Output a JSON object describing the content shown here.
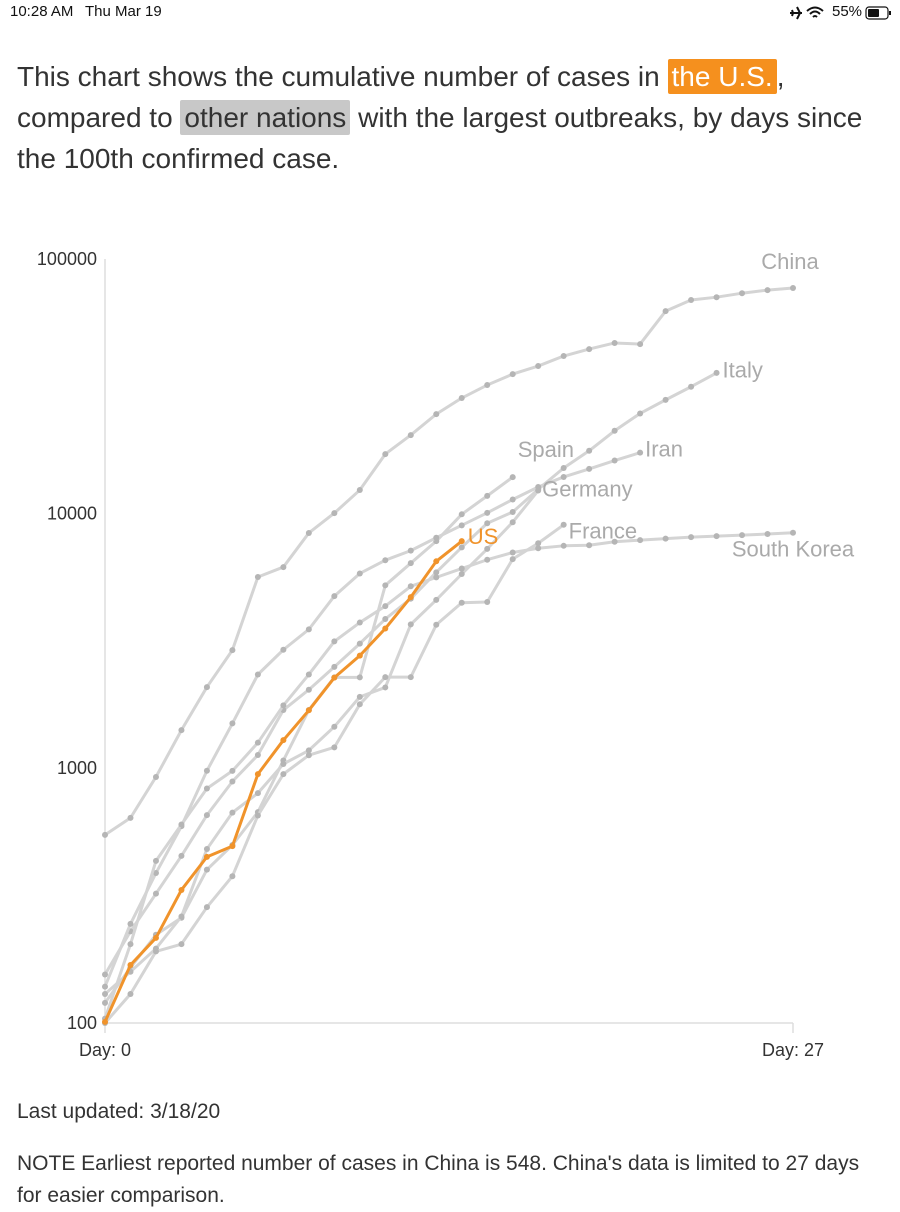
{
  "status_bar": {
    "time": "10:28 AM",
    "date": "Thu Mar 19",
    "battery": "55%"
  },
  "intro": [
    "This chart shows the cumulative number of cases in ",
    "the U.S.",
    ", compared to ",
    "other nations",
    " with the largest outbreaks, by days since the 100th confirmed case."
  ],
  "chart_data": {
    "type": "line",
    "log_scale": true,
    "x": [
      0,
      1,
      2,
      3,
      4,
      5,
      6,
      7,
      8,
      9,
      10,
      11,
      12,
      13,
      14,
      15,
      16,
      17,
      18,
      19,
      20,
      21,
      22,
      23,
      24,
      25,
      26,
      27
    ],
    "xlim": [
      0,
      27
    ],
    "xticks": [
      {
        "value": 0,
        "label": "Day: 0"
      },
      {
        "value": 27,
        "label": "Day: 27"
      }
    ],
    "ylim": [
      100,
      100000
    ],
    "yticks": [
      100,
      1000,
      10000,
      100000
    ],
    "series": [
      {
        "name": "China",
        "color": "#d4d4d4",
        "values": [
          548,
          639,
          925,
          1413,
          2085,
          2912,
          5640,
          6170,
          8400,
          10050,
          12380,
          17140,
          20350,
          24600,
          28450,
          31990,
          35320,
          37990,
          41590,
          44290,
          46800,
          46340,
          62400,
          69000,
          70800,
          73400,
          75500,
          76900
        ]
      },
      {
        "name": "Italy",
        "color": "#d4d4d4",
        "values": [
          155,
          229,
          322,
          453,
          655,
          888,
          1128,
          1694,
          2036,
          2502,
          3089,
          3858,
          4636,
          5883,
          7375,
          9172,
          10149,
          12462,
          15113,
          17660,
          21157,
          24747,
          27980,
          31506,
          35713,
          null,
          null,
          null
        ]
      },
      {
        "name": "Spain",
        "color": "#d4d4d4",
        "values": [
          120,
          165,
          222,
          259,
          400,
          500,
          673,
          1073,
          1695,
          2277,
          2277,
          5232,
          6391,
          7798,
          9942,
          11748,
          13910,
          null,
          null,
          null,
          null,
          null,
          null,
          null,
          null,
          null,
          null,
          null
        ]
      },
      {
        "name": "Iran",
        "color": "#d4d4d4",
        "values": [
          139,
          245,
          388,
          593,
          978,
          1501,
          2336,
          2922,
          3513,
          4747,
          5823,
          6566,
          7161,
          8042,
          9000,
          10075,
          11364,
          12729,
          13938,
          14991,
          16169,
          17361,
          null,
          null,
          null,
          null,
          null,
          null
        ]
      },
      {
        "name": "Germany",
        "color": "#d4d4d4",
        "values": [
          130,
          159,
          196,
          262,
          482,
          670,
          799,
          1040,
          1176,
          1457,
          1908,
          2078,
          3675,
          4585,
          5795,
          7272,
          9257,
          12327,
          null,
          null,
          null,
          null,
          null,
          null,
          null,
          null,
          null,
          null
        ]
      },
      {
        "name": "France",
        "color": "#d4d4d4",
        "values": [
          100,
          130,
          191,
          204,
          285,
          377,
          653,
          949,
          1126,
          1209,
          1784,
          2281,
          2281,
          3661,
          4469,
          4499,
          6633,
          7652,
          9043,
          null,
          null,
          null,
          null,
          null,
          null,
          null,
          null,
          null
        ]
      },
      {
        "name": "South Korea",
        "color": "#d4d4d4",
        "values": [
          104,
          204,
          433,
          602,
          833,
          977,
          1261,
          1766,
          2337,
          3150,
          3736,
          4335,
          5186,
          5621,
          6088,
          6593,
          7041,
          7314,
          7478,
          7513,
          7755,
          7869,
          7979,
          8086,
          8162,
          8236,
          8320,
          8413
        ]
      },
      {
        "name": "US",
        "color": "#f0932b",
        "values": [
          101,
          169,
          216,
          333,
          449,
          495,
          949,
          1290,
          1690,
          2270,
          2770,
          3540,
          4700,
          6500,
          7800,
          null,
          null,
          null,
          null,
          null,
          null,
          null,
          null,
          null,
          null,
          null,
          null,
          null
        ]
      }
    ]
  },
  "footer": {
    "updated": "Last updated: 3/18/20",
    "note": "NOTE Earliest reported number of cases in China is 548. China's data is limited to 27 days for easier comparison."
  }
}
